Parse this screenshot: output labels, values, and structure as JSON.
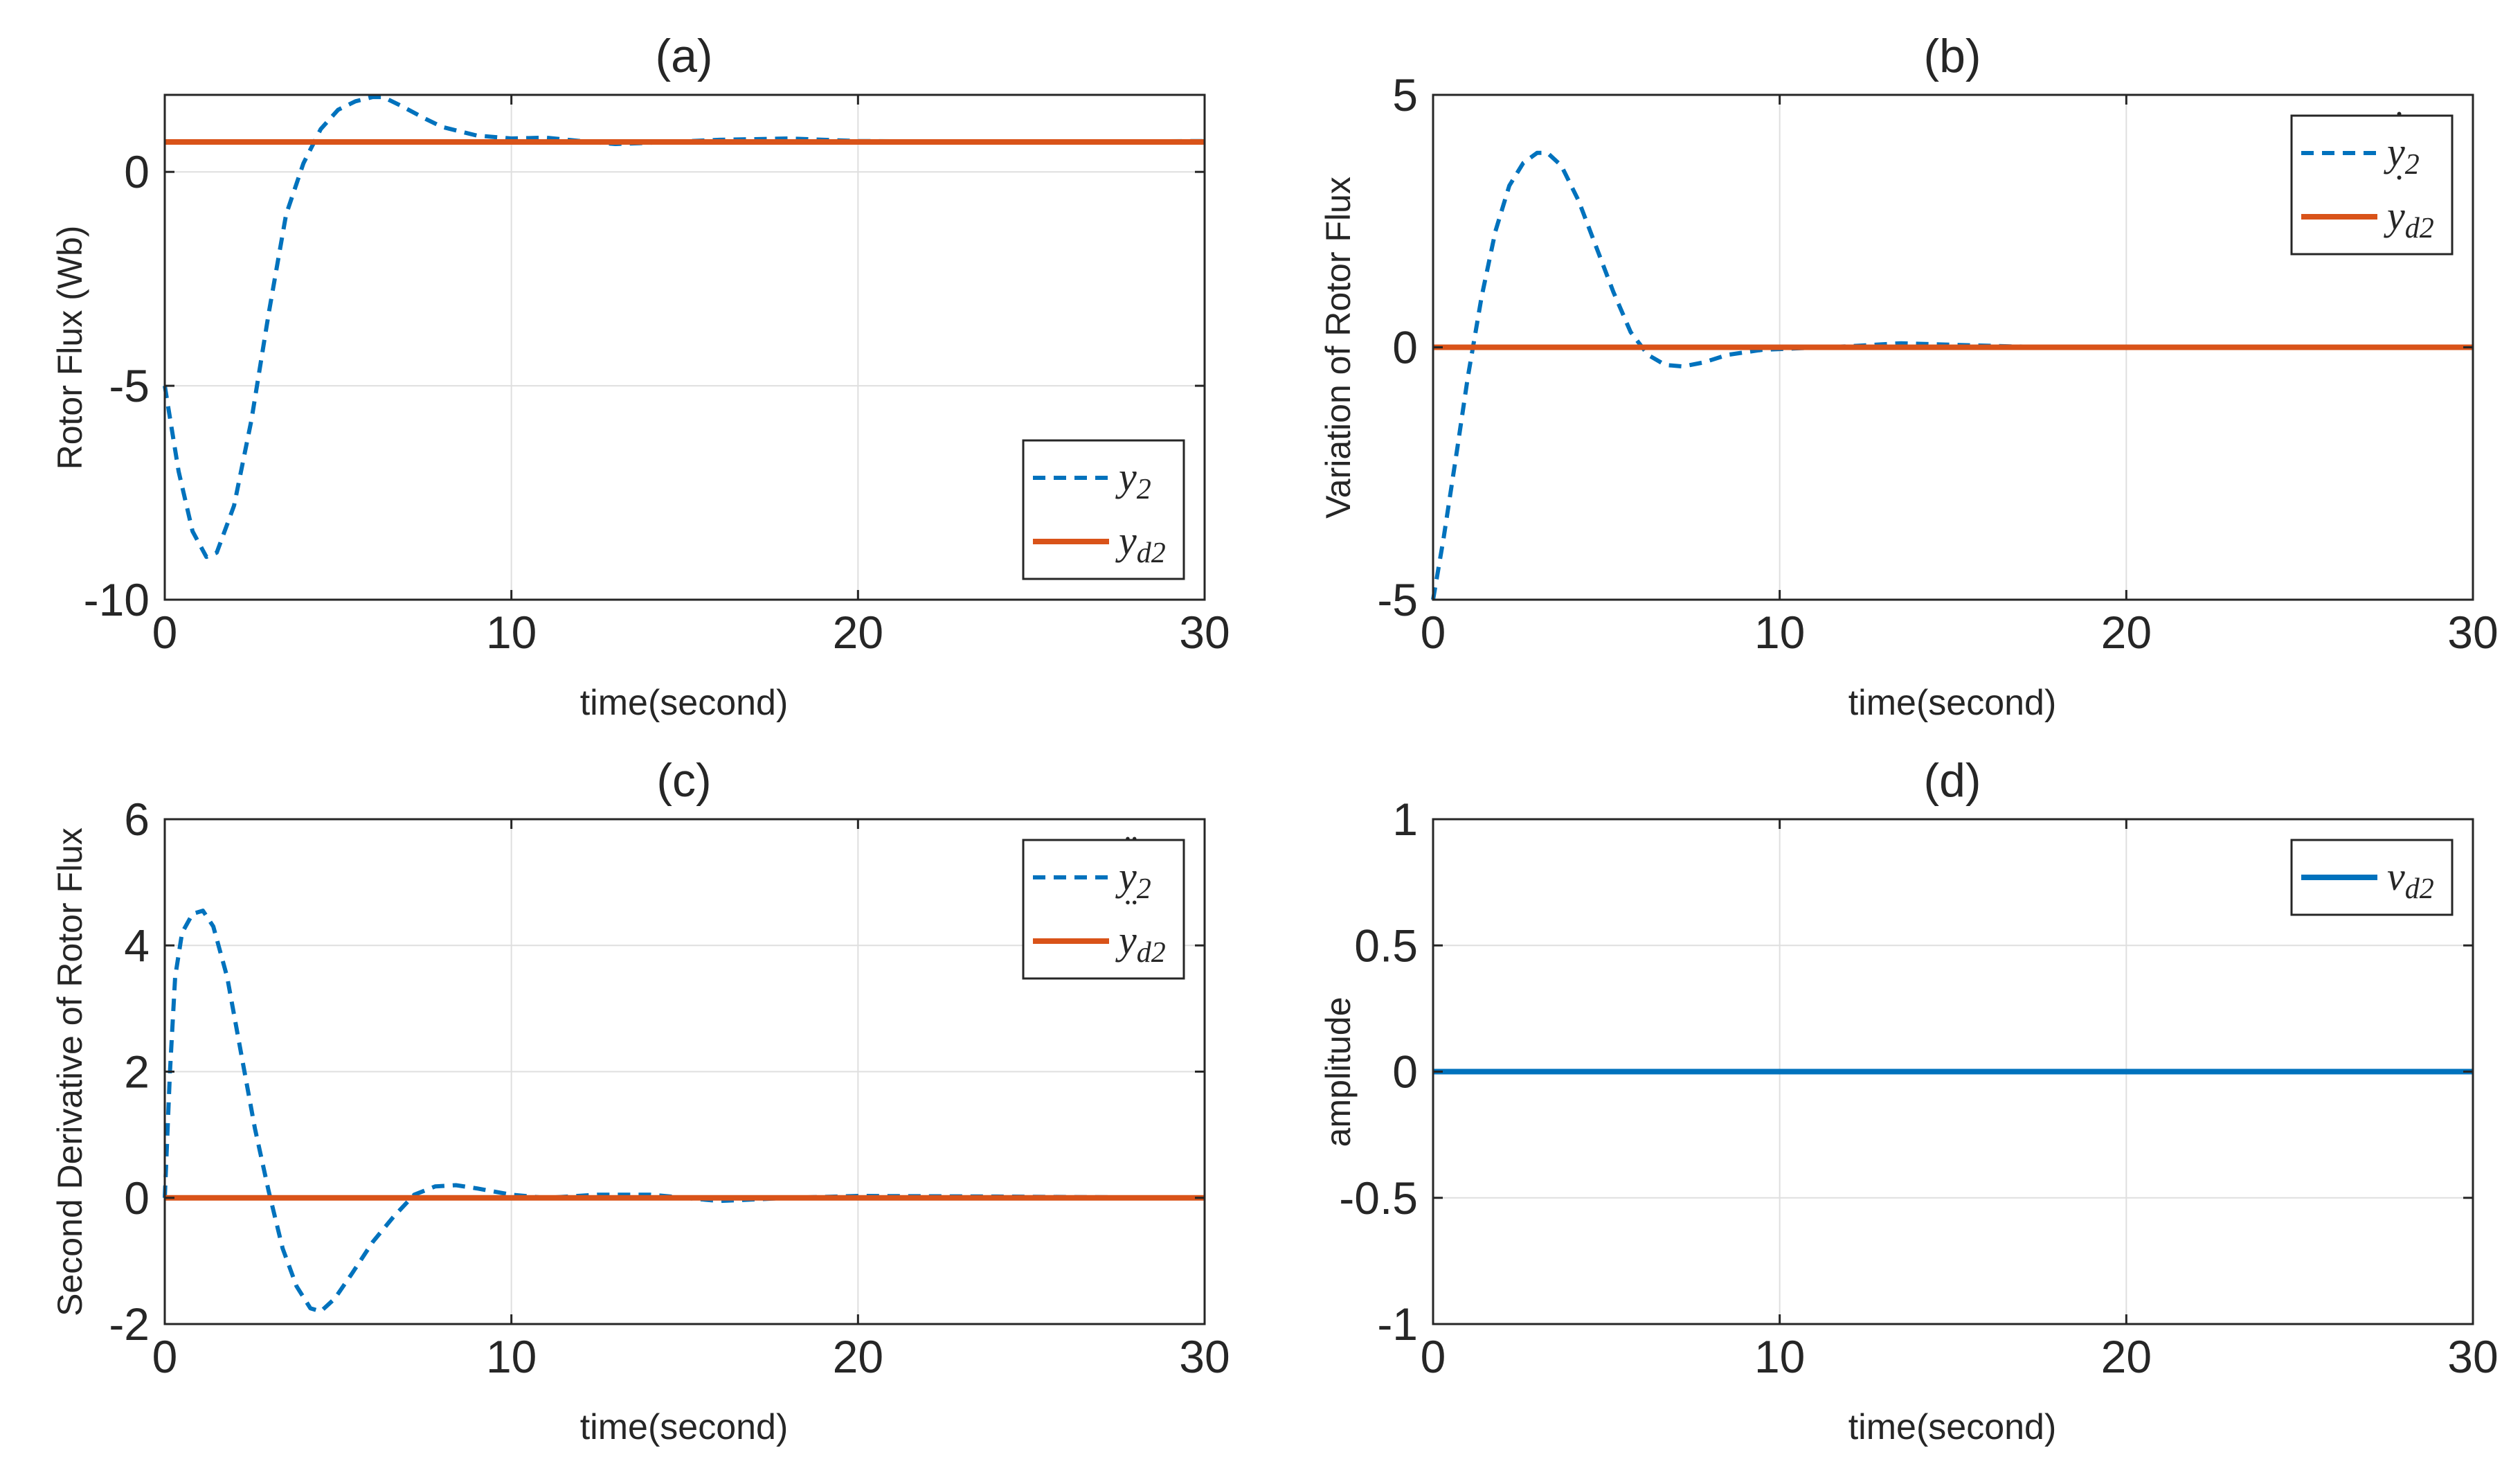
{
  "figure": {
    "colors": {
      "blue": "#0072BD",
      "orange": "#D95319",
      "grid": "#DFDFDF",
      "axis": "#262626",
      "text": "#262626"
    },
    "panels": [
      {
        "id": "a",
        "title": "(a)",
        "xlabel": "time(second)",
        "ylabel": "Rotor Flux (Wb)",
        "xlim": [
          0,
          30
        ],
        "ylim": [
          -10,
          1.8
        ],
        "xticks": [
          0,
          10,
          20,
          30
        ],
        "xtick_labels": [
          "0",
          "10",
          "20",
          "30"
        ],
        "yticks": [
          -10,
          -5,
          0
        ],
        "ytick_labels": [
          "-10",
          "-5",
          "0"
        ],
        "legend": {
          "position": "bottom-right",
          "entries": [
            {
              "series": 0,
              "base": "y",
              "sub": "2",
              "accent": ""
            },
            {
              "series": 1,
              "base": "y",
              "sub": "d2",
              "accent": ""
            }
          ]
        },
        "series": [
          {
            "name": "y2",
            "style": "dashed",
            "color": "#0072BD",
            "x": [
              0,
              0.4,
              0.8,
              1.2,
              1.5,
              2.0,
              2.5,
              3.0,
              3.5,
              4.0,
              4.5,
              5.0,
              5.5,
              6.0,
              6.3,
              6.8,
              7.5,
              8.0,
              9.0,
              10.0,
              11.0,
              12.0,
              13.0,
              14.0,
              16.0,
              18.0,
              20.0,
              25.0,
              30.0
            ],
            "y": [
              -5.0,
              -7.0,
              -8.4,
              -9.0,
              -8.9,
              -7.8,
              -5.8,
              -3.3,
              -1.0,
              0.2,
              1.0,
              1.45,
              1.65,
              1.75,
              1.75,
              1.55,
              1.25,
              1.05,
              0.85,
              0.78,
              0.8,
              0.72,
              0.65,
              0.68,
              0.75,
              0.78,
              0.72,
              0.7,
              0.72
            ]
          },
          {
            "name": "yd2",
            "style": "solid",
            "color": "#D95319",
            "x": [
              0,
              30
            ],
            "y": [
              0.7,
              0.7
            ]
          }
        ]
      },
      {
        "id": "b",
        "title": "(b)",
        "xlabel": "time(second)",
        "ylabel": "Variation of Rotor Flux",
        "xlim": [
          0,
          30
        ],
        "ylim": [
          -5,
          5
        ],
        "xticks": [
          0,
          10,
          20,
          30
        ],
        "xtick_labels": [
          "0",
          "10",
          "20",
          "30"
        ],
        "yticks": [
          -5,
          0,
          5
        ],
        "ytick_labels": [
          "-5",
          "0",
          "5"
        ],
        "legend": {
          "position": "top-right",
          "entries": [
            {
              "series": 0,
              "base": "y",
              "sub": "2",
              "accent": "˙"
            },
            {
              "series": 1,
              "base": "y",
              "sub": "d2",
              "accent": "˙"
            }
          ]
        },
        "series": [
          {
            "name": "dy2",
            "style": "dashed",
            "color": "#0072BD",
            "x": [
              0,
              0.3,
              0.7,
              1.0,
              1.4,
              1.8,
              2.2,
              2.6,
              3.0,
              3.3,
              3.7,
              4.2,
              4.7,
              5.2,
              5.7,
              6.2,
              6.7,
              7.2,
              7.8,
              8.5,
              9.5,
              10.5,
              12.0,
              13.5,
              15.0,
              16.5,
              18.0,
              22.0,
              30.0
            ],
            "y": [
              -5.0,
              -3.8,
              -2.0,
              -0.6,
              1.0,
              2.3,
              3.2,
              3.65,
              3.85,
              3.85,
              3.6,
              2.9,
              2.0,
              1.1,
              0.3,
              -0.15,
              -0.35,
              -0.38,
              -0.3,
              -0.15,
              -0.05,
              -0.02,
              0.02,
              0.08,
              0.05,
              0.02,
              0.0,
              0.0,
              0.0
            ]
          },
          {
            "name": "dyd2",
            "style": "solid",
            "color": "#D95319",
            "x": [
              0,
              30
            ],
            "y": [
              0.0,
              0.0
            ]
          }
        ]
      },
      {
        "id": "c",
        "title": "(c)",
        "xlabel": "time(second)",
        "ylabel": "Second Derivative of Rotor Flux",
        "xlim": [
          0,
          30
        ],
        "ylim": [
          -2,
          6
        ],
        "xticks": [
          0,
          10,
          20,
          30
        ],
        "xtick_labels": [
          "0",
          "10",
          "20",
          "30"
        ],
        "yticks": [
          -2,
          0,
          2,
          4,
          6
        ],
        "ytick_labels": [
          "-2",
          "0",
          "2",
          "4",
          "6"
        ],
        "legend": {
          "position": "top-right",
          "entries": [
            {
              "series": 0,
              "base": "y",
              "sub": "2",
              "accent": "¨"
            },
            {
              "series": 1,
              "base": "y",
              "sub": "d2",
              "accent": "¨"
            }
          ]
        },
        "series": [
          {
            "name": "ddy2",
            "style": "dashed",
            "color": "#0072BD",
            "x": [
              0,
              0.15,
              0.3,
              0.5,
              0.8,
              1.1,
              1.4,
              1.8,
              2.2,
              2.6,
              3.0,
              3.4,
              3.8,
              4.2,
              4.5,
              4.9,
              5.4,
              6.0,
              6.6,
              7.2,
              7.8,
              8.4,
              9.0,
              10.0,
              11.0,
              12.5,
              14.0,
              16.0,
              18.0,
              20.0,
              24.0,
              30.0
            ],
            "y": [
              0.0,
              2.0,
              3.5,
              4.2,
              4.5,
              4.55,
              4.3,
              3.5,
              2.3,
              1.1,
              0.1,
              -0.8,
              -1.4,
              -1.75,
              -1.8,
              -1.6,
              -1.2,
              -0.7,
              -0.3,
              0.05,
              0.18,
              0.2,
              0.15,
              0.05,
              0.0,
              0.05,
              0.05,
              -0.05,
              0.0,
              0.03,
              0.02,
              0.0
            ]
          },
          {
            "name": "ddyd2",
            "style": "solid",
            "color": "#D95319",
            "x": [
              0,
              30
            ],
            "y": [
              0.0,
              0.0
            ]
          }
        ]
      },
      {
        "id": "d",
        "title": "(d)",
        "xlabel": "time(second)",
        "ylabel": "amplitude",
        "xlim": [
          0,
          30
        ],
        "ylim": [
          -1,
          1
        ],
        "xticks": [
          0,
          10,
          20,
          30
        ],
        "xtick_labels": [
          "0",
          "10",
          "20",
          "30"
        ],
        "yticks": [
          -1,
          -0.5,
          0,
          0.5,
          1
        ],
        "ytick_labels": [
          "-1",
          "-0.5",
          "0",
          "0.5",
          "1"
        ],
        "legend": {
          "position": "top-right",
          "entries": [
            {
              "series": 0,
              "base": "v",
              "sub": "d2",
              "accent": ""
            }
          ]
        },
        "series": [
          {
            "name": "vd2",
            "style": "solid",
            "color": "#0072BD",
            "x": [
              0,
              30
            ],
            "y": [
              0.0,
              0.0
            ]
          }
        ]
      }
    ]
  },
  "chart_data": [
    {
      "type": "line",
      "title": "(a)",
      "xlabel": "time(second)",
      "ylabel": "Rotor Flux (Wb)",
      "xlim": [
        0,
        30
      ],
      "ylim": [
        -10,
        1.8
      ],
      "grid": true,
      "legend": "bottom-right",
      "series": [
        {
          "name": "y2",
          "style": "dashed",
          "x": [
            0,
            0.4,
            0.8,
            1.2,
            1.5,
            2.0,
            2.5,
            3.0,
            3.5,
            4.0,
            4.5,
            5.0,
            5.5,
            6.0,
            6.3,
            6.8,
            7.5,
            8.0,
            9.0,
            10.0,
            11.0,
            12.0,
            13.0,
            14.0,
            16.0,
            18.0,
            20.0,
            25.0,
            30.0
          ],
          "y": [
            -5.0,
            -7.0,
            -8.4,
            -9.0,
            -8.9,
            -7.8,
            -5.8,
            -3.3,
            -1.0,
            0.2,
            1.0,
            1.45,
            1.65,
            1.75,
            1.75,
            1.55,
            1.25,
            1.05,
            0.85,
            0.78,
            0.8,
            0.72,
            0.65,
            0.68,
            0.75,
            0.78,
            0.72,
            0.7,
            0.72
          ]
        },
        {
          "name": "yd2",
          "style": "solid",
          "x": [
            0,
            30
          ],
          "y": [
            0.7,
            0.7
          ]
        }
      ]
    },
    {
      "type": "line",
      "title": "(b)",
      "xlabel": "time(second)",
      "ylabel": "Variation of Rotor Flux",
      "xlim": [
        0,
        30
      ],
      "ylim": [
        -5,
        5
      ],
      "grid": true,
      "legend": "top-right",
      "series": [
        {
          "name": "y2 dot",
          "style": "dashed",
          "x": [
            0,
            0.3,
            0.7,
            1.0,
            1.4,
            1.8,
            2.2,
            2.6,
            3.0,
            3.3,
            3.7,
            4.2,
            4.7,
            5.2,
            5.7,
            6.2,
            6.7,
            7.2,
            7.8,
            8.5,
            9.5,
            10.5,
            12.0,
            13.5,
            15.0,
            16.5,
            18.0,
            22.0,
            30.0
          ],
          "y": [
            -5.0,
            -3.8,
            -2.0,
            -0.6,
            1.0,
            2.3,
            3.2,
            3.65,
            3.85,
            3.85,
            3.6,
            2.9,
            2.0,
            1.1,
            0.3,
            -0.15,
            -0.35,
            -0.38,
            -0.3,
            -0.15,
            -0.05,
            -0.02,
            0.02,
            0.08,
            0.05,
            0.02,
            0.0,
            0.0,
            0.0
          ]
        },
        {
          "name": "yd2 dot",
          "style": "solid",
          "x": [
            0,
            30
          ],
          "y": [
            0.0,
            0.0
          ]
        }
      ]
    },
    {
      "type": "line",
      "title": "(c)",
      "xlabel": "time(second)",
      "ylabel": "Second Derivative of Rotor Flux",
      "xlim": [
        0,
        30
      ],
      "ylim": [
        -2,
        6
      ],
      "grid": true,
      "legend": "top-right",
      "series": [
        {
          "name": "y2 ddot",
          "style": "dashed",
          "x": [
            0,
            0.15,
            0.3,
            0.5,
            0.8,
            1.1,
            1.4,
            1.8,
            2.2,
            2.6,
            3.0,
            3.4,
            3.8,
            4.2,
            4.5,
            4.9,
            5.4,
            6.0,
            6.6,
            7.2,
            7.8,
            8.4,
            9.0,
            10.0,
            11.0,
            12.5,
            14.0,
            16.0,
            18.0,
            20.0,
            24.0,
            30.0
          ],
          "y": [
            0.0,
            2.0,
            3.5,
            4.2,
            4.5,
            4.55,
            4.3,
            3.5,
            2.3,
            1.1,
            0.1,
            -0.8,
            -1.4,
            -1.75,
            -1.8,
            -1.6,
            -1.2,
            -0.7,
            -0.3,
            0.05,
            0.18,
            0.2,
            0.15,
            0.05,
            0.0,
            0.05,
            0.05,
            -0.05,
            0.0,
            0.03,
            0.02,
            0.0
          ]
        },
        {
          "name": "yd2 ddot",
          "style": "solid",
          "x": [
            0,
            30
          ],
          "y": [
            0.0,
            0.0
          ]
        }
      ]
    },
    {
      "type": "line",
      "title": "(d)",
      "xlabel": "time(second)",
      "ylabel": "amplitude",
      "xlim": [
        0,
        30
      ],
      "ylim": [
        -1,
        1
      ],
      "grid": true,
      "legend": "top-right",
      "series": [
        {
          "name": "vd2",
          "style": "solid",
          "x": [
            0,
            30
          ],
          "y": [
            0.0,
            0.0
          ]
        }
      ]
    }
  ]
}
